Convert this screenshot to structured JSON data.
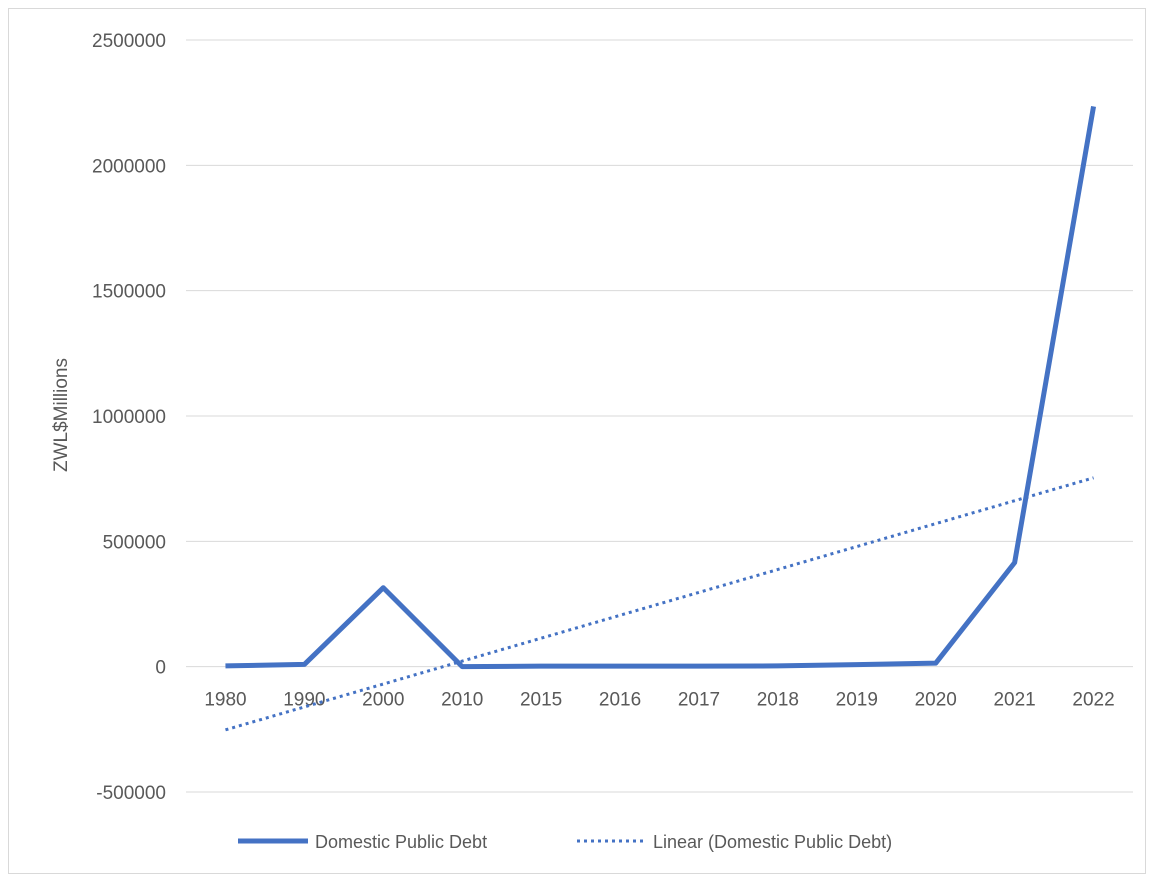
{
  "chart_data": {
    "type": "line",
    "categories": [
      "1980",
      "1990",
      "2000",
      "2010",
      "2015",
      "2016",
      "2017",
      "2018",
      "2019",
      "2020",
      "2021",
      "2022"
    ],
    "series": [
      {
        "name": "Domestic Public Debt",
        "values": [
          3000,
          9000,
          315000,
          0,
          2000,
          2000,
          2000,
          3000,
          8000,
          14000,
          415000,
          2235000
        ],
        "color": "#4472c4",
        "style": "solid"
      },
      {
        "name": "Linear (Domestic Public Debt)",
        "trendline_of": "Domestic Public Debt",
        "color": "#4472c4",
        "style": "dotted"
      }
    ],
    "title": "",
    "xlabel": "",
    "ylabel": "ZWL$Millions",
    "ylim": [
      -500000,
      2500000
    ],
    "yticks": [
      "-500000",
      "0",
      "500000",
      "1000000",
      "1500000",
      "2000000",
      "2500000"
    ],
    "grid": "horizontal",
    "legend_position": "bottom"
  }
}
